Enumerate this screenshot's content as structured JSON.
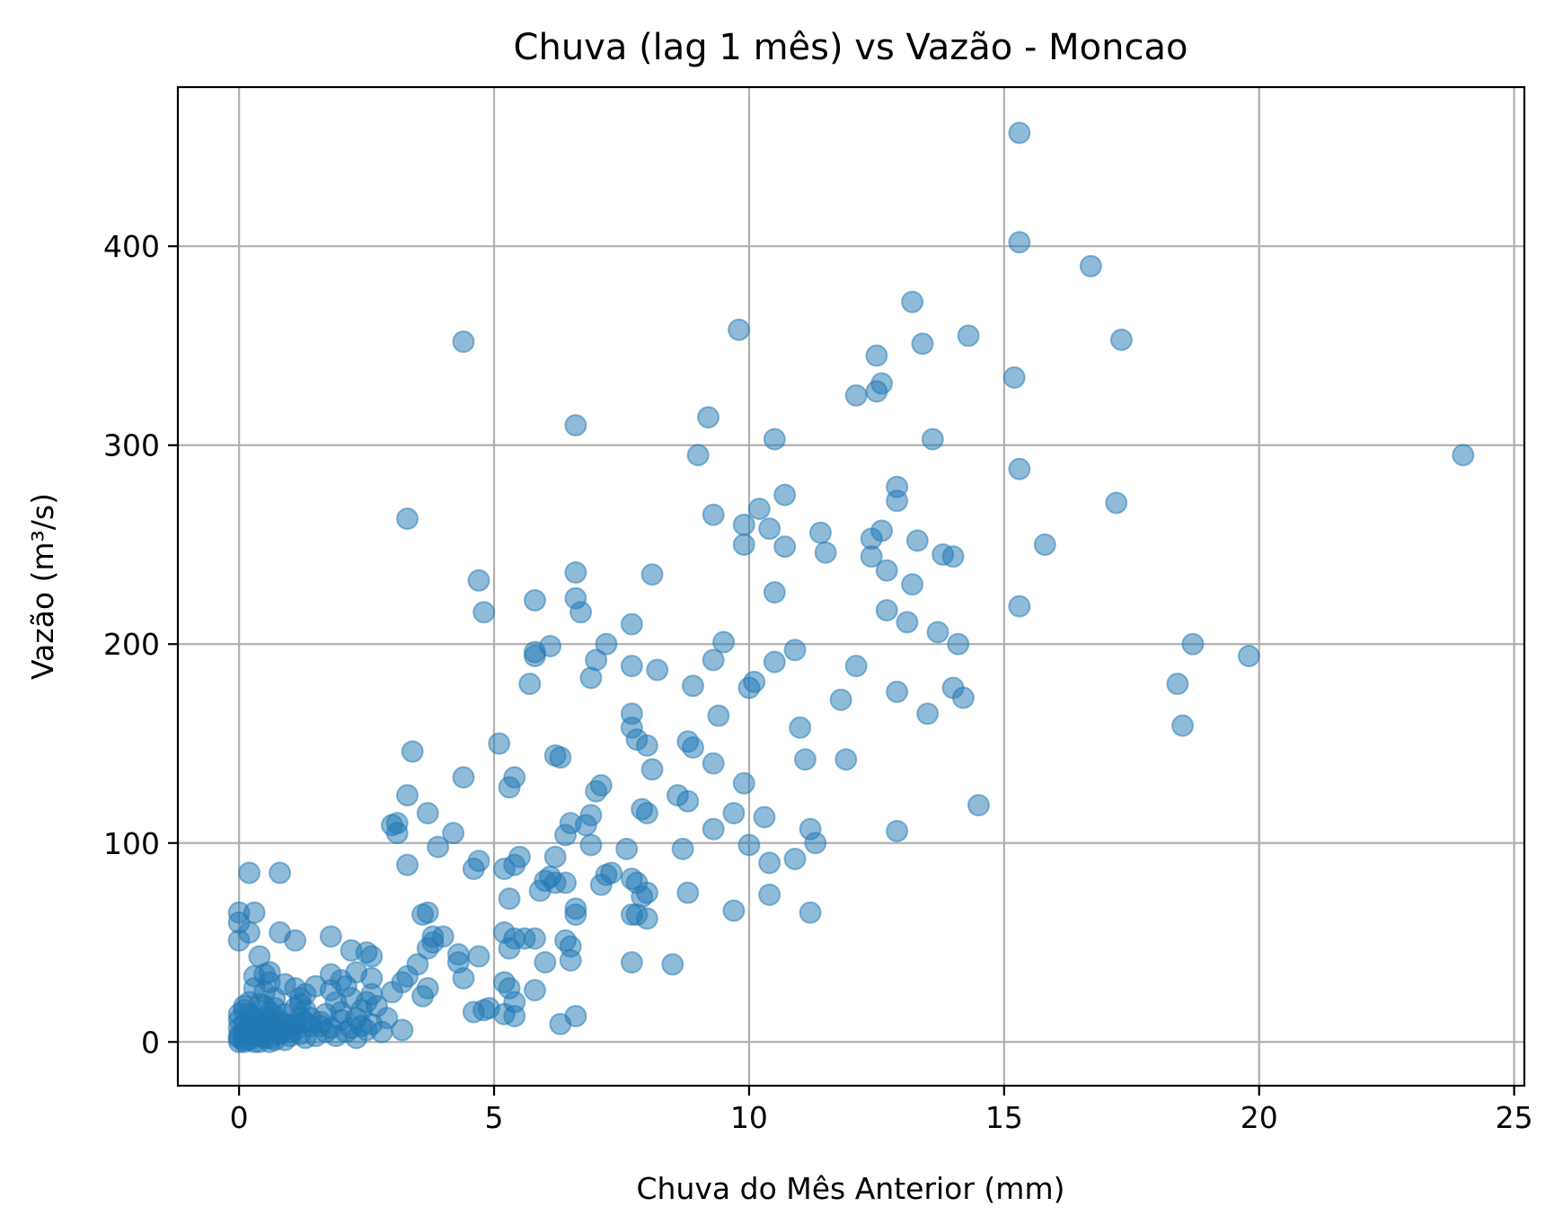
{
  "chart_data": {
    "type": "scatter",
    "title": "Chuva (lag 1 mês) vs Vazão - Moncao",
    "xlabel": "Chuva do Mês Anterior (mm)",
    "ylabel": "Vazão (m³/s)",
    "xlim": [
      -1.2,
      25.2
    ],
    "ylim": [
      -22,
      480
    ],
    "x_ticks": [
      0,
      5,
      10,
      15,
      20,
      25
    ],
    "y_ticks": [
      0,
      100,
      200,
      300,
      400
    ],
    "grid": true,
    "marker_color": "#1f77b4",
    "marker_opacity": 0.5,
    "points": [
      [
        15.3,
        457
      ],
      [
        15.3,
        402
      ],
      [
        16.7,
        390
      ],
      [
        13.2,
        372
      ],
      [
        9.8,
        358
      ],
      [
        14.3,
        355
      ],
      [
        13.4,
        351
      ],
      [
        17.3,
        353
      ],
      [
        4.4,
        352
      ],
      [
        12.5,
        345
      ],
      [
        15.2,
        334
      ],
      [
        12.6,
        331
      ],
      [
        12.5,
        327
      ],
      [
        12.1,
        325
      ],
      [
        9.2,
        314
      ],
      [
        6.6,
        310
      ],
      [
        10.5,
        303
      ],
      [
        13.6,
        303
      ],
      [
        24.0,
        295
      ],
      [
        9.0,
        295
      ],
      [
        15.3,
        288
      ],
      [
        12.9,
        279
      ],
      [
        10.7,
        275
      ],
      [
        12.9,
        272
      ],
      [
        17.2,
        271
      ],
      [
        10.2,
        268
      ],
      [
        9.3,
        265
      ],
      [
        3.3,
        263
      ],
      [
        9.9,
        260
      ],
      [
        10.4,
        258
      ],
      [
        12.6,
        257
      ],
      [
        11.4,
        256
      ],
      [
        13.3,
        252
      ],
      [
        12.4,
        253
      ],
      [
        15.8,
        250
      ],
      [
        9.9,
        250
      ],
      [
        10.7,
        249
      ],
      [
        11.5,
        246
      ],
      [
        13.8,
        245
      ],
      [
        12.4,
        244
      ],
      [
        14.0,
        244
      ],
      [
        12.7,
        237
      ],
      [
        6.6,
        236
      ],
      [
        8.1,
        235
      ],
      [
        4.7,
        232
      ],
      [
        13.2,
        230
      ],
      [
        10.5,
        226
      ],
      [
        6.6,
        223
      ],
      [
        5.8,
        222
      ],
      [
        15.3,
        219
      ],
      [
        12.7,
        217
      ],
      [
        4.8,
        216
      ],
      [
        6.7,
        216
      ],
      [
        13.1,
        211
      ],
      [
        7.7,
        210
      ],
      [
        13.7,
        206
      ],
      [
        9.5,
        201
      ],
      [
        7.2,
        200
      ],
      [
        14.1,
        200
      ],
      [
        18.7,
        200
      ],
      [
        6.1,
        199
      ],
      [
        10.9,
        197
      ],
      [
        5.8,
        196
      ],
      [
        5.8,
        194
      ],
      [
        19.8,
        194
      ],
      [
        9.3,
        192
      ],
      [
        7.0,
        192
      ],
      [
        10.5,
        191
      ],
      [
        12.1,
        189
      ],
      [
        7.7,
        189
      ],
      [
        8.2,
        187
      ],
      [
        6.9,
        183
      ],
      [
        10.1,
        181
      ],
      [
        18.4,
        180
      ],
      [
        5.7,
        180
      ],
      [
        8.9,
        179
      ],
      [
        10.0,
        178
      ],
      [
        14.0,
        178
      ],
      [
        12.9,
        176
      ],
      [
        14.2,
        173
      ],
      [
        11.8,
        172
      ],
      [
        13.5,
        165
      ],
      [
        7.7,
        165
      ],
      [
        9.4,
        164
      ],
      [
        18.5,
        159
      ],
      [
        11.0,
        158
      ],
      [
        7.7,
        158
      ],
      [
        7.8,
        152
      ],
      [
        8.8,
        151
      ],
      [
        5.1,
        150
      ],
      [
        8.0,
        149
      ],
      [
        8.9,
        148
      ],
      [
        3.4,
        146
      ],
      [
        6.3,
        143
      ],
      [
        6.2,
        144
      ],
      [
        11.1,
        142
      ],
      [
        11.9,
        142
      ],
      [
        9.3,
        140
      ],
      [
        8.1,
        137
      ],
      [
        4.4,
        133
      ],
      [
        5.4,
        133
      ],
      [
        9.9,
        130
      ],
      [
        7.1,
        129
      ],
      [
        5.3,
        128
      ],
      [
        7.0,
        126
      ],
      [
        3.3,
        124
      ],
      [
        8.6,
        124
      ],
      [
        8.8,
        121
      ],
      [
        14.5,
        119
      ],
      [
        7.9,
        117
      ],
      [
        3.7,
        115
      ],
      [
        9.7,
        115
      ],
      [
        6.9,
        114
      ],
      [
        8.0,
        115
      ],
      [
        10.3,
        113
      ],
      [
        6.5,
        110
      ],
      [
        3.1,
        110
      ],
      [
        3.0,
        109
      ],
      [
        6.8,
        109
      ],
      [
        9.3,
        107
      ],
      [
        11.2,
        107
      ],
      [
        12.9,
        106
      ],
      [
        4.2,
        105
      ],
      [
        3.1,
        105
      ],
      [
        6.4,
        104
      ],
      [
        11.3,
        100
      ],
      [
        10.0,
        99
      ],
      [
        3.9,
        98
      ],
      [
        6.9,
        99
      ],
      [
        8.7,
        97
      ],
      [
        7.6,
        97
      ],
      [
        5.5,
        93
      ],
      [
        10.9,
        92
      ],
      [
        4.7,
        91
      ],
      [
        6.2,
        93
      ],
      [
        3.3,
        89
      ],
      [
        10.4,
        90
      ],
      [
        5.4,
        89
      ],
      [
        4.6,
        87
      ],
      [
        5.2,
        87
      ],
      [
        0.2,
        85
      ],
      [
        0.8,
        85
      ],
      [
        7.3,
        85
      ],
      [
        7.2,
        84
      ],
      [
        7.7,
        82
      ],
      [
        6.1,
        83
      ],
      [
        7.8,
        80
      ],
      [
        6.0,
        81
      ],
      [
        6.4,
        80
      ],
      [
        7.1,
        79
      ],
      [
        6.2,
        80
      ],
      [
        5.9,
        76
      ],
      [
        8.8,
        75
      ],
      [
        10.4,
        74
      ],
      [
        8.0,
        75
      ],
      [
        7.9,
        73
      ],
      [
        5.3,
        72
      ],
      [
        9.7,
        66
      ],
      [
        11.2,
        65
      ],
      [
        6.6,
        67
      ],
      [
        6.6,
        64
      ],
      [
        7.8,
        64
      ],
      [
        0.0,
        65
      ],
      [
        0.3,
        65
      ],
      [
        3.7,
        65
      ],
      [
        3.6,
        64
      ],
      [
        7.7,
        64
      ],
      [
        8.0,
        62
      ],
      [
        0.0,
        60
      ],
      [
        0.2,
        55
      ],
      [
        0.8,
        55
      ],
      [
        3.8,
        53
      ],
      [
        5.4,
        52
      ],
      [
        5.2,
        55
      ],
      [
        5.8,
        52
      ],
      [
        0.0,
        51
      ],
      [
        1.1,
        51
      ],
      [
        1.8,
        53
      ],
      [
        6.4,
        51
      ],
      [
        5.6,
        52
      ],
      [
        3.8,
        50
      ],
      [
        4.0,
        53
      ],
      [
        3.7,
        47
      ],
      [
        6.5,
        48
      ],
      [
        5.3,
        47
      ],
      [
        4.3,
        44
      ],
      [
        0.4,
        43
      ],
      [
        2.6,
        43
      ],
      [
        4.7,
        43
      ],
      [
        6.0,
        40
      ],
      [
        6.5,
        41
      ],
      [
        7.7,
        40
      ],
      [
        8.5,
        39
      ],
      [
        4.3,
        40
      ],
      [
        3.5,
        39
      ],
      [
        0.5,
        34
      ],
      [
        0.6,
        35
      ],
      [
        3.3,
        33
      ],
      [
        2.6,
        32
      ],
      [
        0.3,
        33
      ],
      [
        5.2,
        30
      ],
      [
        1.8,
        34
      ],
      [
        3.2,
        30
      ],
      [
        4.4,
        32
      ],
      [
        0.9,
        29
      ],
      [
        2.1,
        28
      ],
      [
        3.7,
        27
      ],
      [
        5.8,
        26
      ],
      [
        3.0,
        25
      ],
      [
        5.3,
        27
      ],
      [
        3.6,
        23
      ],
      [
        0.5,
        25
      ],
      [
        1.2,
        22
      ],
      [
        0.7,
        22
      ],
      [
        2.5,
        20
      ],
      [
        1.9,
        20
      ],
      [
        5.4,
        20
      ],
      [
        0.4,
        19
      ],
      [
        1.2,
        19
      ],
      [
        0.5,
        18
      ],
      [
        0.1,
        18
      ],
      [
        0.7,
        17
      ],
      [
        1.1,
        17
      ],
      [
        4.9,
        17
      ],
      [
        4.8,
        16
      ],
      [
        4.6,
        15
      ],
      [
        5.2,
        14
      ],
      [
        5.4,
        13
      ],
      [
        6.6,
        13
      ],
      [
        2.3,
        12
      ],
      [
        2.0,
        11
      ],
      [
        1.3,
        10
      ],
      [
        6.3,
        9
      ],
      [
        0.2,
        14
      ],
      [
        0.3,
        12
      ],
      [
        0.5,
        12
      ],
      [
        0.6,
        11
      ],
      [
        0.8,
        10
      ],
      [
        0.9,
        9
      ],
      [
        1.1,
        9
      ],
      [
        1.4,
        8
      ],
      [
        1.6,
        8
      ],
      [
        1.8,
        7
      ],
      [
        2.2,
        7
      ],
      [
        2.5,
        6
      ],
      [
        3.2,
        6
      ],
      [
        2.8,
        5
      ],
      [
        0.1,
        9
      ],
      [
        0.2,
        8
      ],
      [
        0.3,
        8
      ],
      [
        0.4,
        7
      ],
      [
        0.5,
        7
      ],
      [
        0.6,
        6
      ],
      [
        0.7,
        6
      ],
      [
        0.8,
        5
      ],
      [
        1.0,
        5
      ],
      [
        1.2,
        4
      ],
      [
        1.5,
        3
      ],
      [
        1.9,
        3
      ],
      [
        2.3,
        2
      ],
      [
        0.0,
        7
      ],
      [
        0.1,
        5
      ],
      [
        0.2,
        4
      ],
      [
        0.3,
        3
      ],
      [
        0.4,
        3
      ],
      [
        0.5,
        2
      ],
      [
        0.6,
        2
      ],
      [
        0.7,
        1
      ],
      [
        0.9,
        1
      ],
      [
        1.0,
        3
      ],
      [
        1.3,
        2
      ],
      [
        0.0,
        3
      ],
      [
        0.0,
        2
      ],
      [
        0.1,
        1
      ],
      [
        0.2,
        1
      ],
      [
        0.3,
        0
      ],
      [
        0.4,
        0
      ],
      [
        0.0,
        0
      ],
      [
        0.1,
        0
      ],
      [
        0.6,
        0
      ],
      [
        0.8,
        4
      ],
      [
        1.1,
        6
      ],
      [
        1.4,
        12
      ],
      [
        1.7,
        14
      ],
      [
        2.0,
        15
      ],
      [
        2.4,
        16
      ],
      [
        2.7,
        18
      ],
      [
        1.6,
        10
      ],
      [
        1.3,
        16
      ],
      [
        0.9,
        14
      ],
      [
        2.2,
        22
      ],
      [
        2.6,
        24
      ],
      [
        1.5,
        28
      ],
      [
        1.8,
        26
      ],
      [
        2.0,
        31
      ],
      [
        2.9,
        12
      ],
      [
        2.6,
        9
      ],
      [
        2.1,
        5
      ],
      [
        0.2,
        20
      ],
      [
        0.0,
        11
      ],
      [
        0.0,
        14
      ],
      [
        0.1,
        16
      ],
      [
        0.4,
        10
      ],
      [
        0.7,
        13
      ],
      [
        1.0,
        8
      ],
      [
        1.7,
        5
      ],
      [
        2.4,
        8
      ],
      [
        0.3,
        6
      ],
      [
        0.6,
        15
      ],
      [
        1.2,
        12
      ],
      [
        2.3,
        35
      ],
      [
        2.5,
        45
      ],
      [
        2.2,
        46
      ],
      [
        1.3,
        24
      ],
      [
        1.1,
        27
      ],
      [
        0.3,
        27
      ],
      [
        0.6,
        30
      ]
    ]
  }
}
